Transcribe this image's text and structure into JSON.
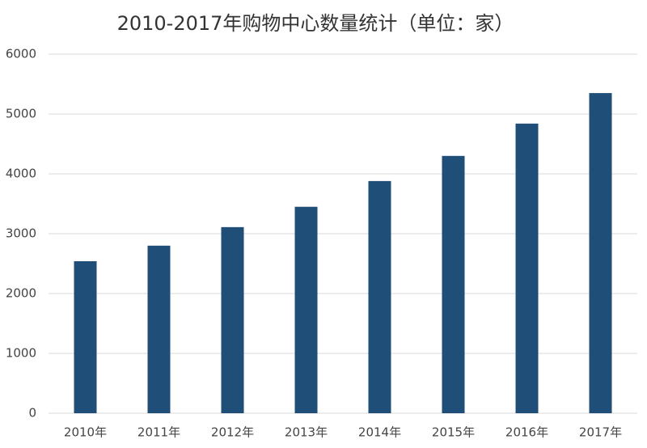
{
  "chart_data": {
    "type": "bar",
    "title": "2010-2017年购物中心数量统计（单位：家）",
    "categories": [
      "2010年",
      "2011年",
      "2012年",
      "2013年",
      "2014年",
      "2015年",
      "2016年",
      "2017年"
    ],
    "values": [
      2540,
      2800,
      3110,
      3450,
      3880,
      4300,
      4840,
      5350
    ],
    "color": "#1f4e79",
    "ylim": [
      0,
      6000
    ],
    "yticks": [
      0,
      1000,
      2000,
      3000,
      4000,
      5000,
      6000
    ],
    "grid": true
  }
}
